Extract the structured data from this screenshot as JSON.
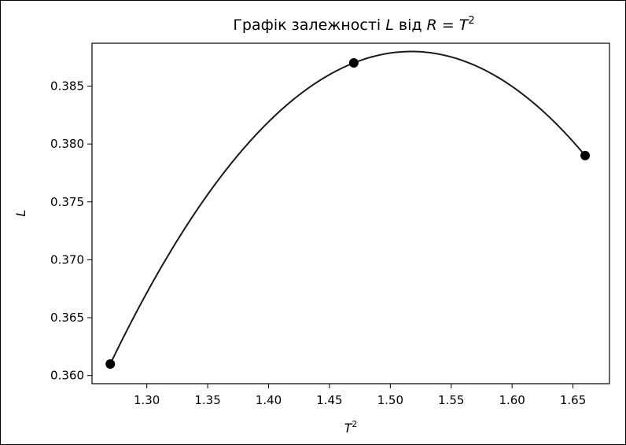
{
  "chart_data": {
    "type": "line",
    "title_prefix": "Графік залежності ",
    "title_var_l": "L",
    "title_mid": " від ",
    "title_var_r": "R",
    "title_eq": " = ",
    "title_var_t": "T",
    "title_exp": "2",
    "xlabel_var": "T",
    "xlabel_exp": "2",
    "ylabel": "L",
    "xlim": [
      1.255,
      1.68
    ],
    "ylim": [
      0.3593,
      0.3887
    ],
    "xticks": [
      "1.30",
      "1.35",
      "1.40",
      "1.45",
      "1.50",
      "1.55",
      "1.60",
      "1.65"
    ],
    "xtick_values": [
      1.3,
      1.35,
      1.4,
      1.45,
      1.5,
      1.55,
      1.6,
      1.65
    ],
    "yticks": [
      "0.360",
      "0.365",
      "0.370",
      "0.375",
      "0.380",
      "0.385"
    ],
    "ytick_values": [
      0.36,
      0.365,
      0.37,
      0.375,
      0.38,
      0.385
    ],
    "points": [
      {
        "x": 1.27,
        "y": 0.361
      },
      {
        "x": 1.47,
        "y": 0.387
      },
      {
        "x": 1.66,
        "y": 0.379
      }
    ],
    "curve": "quadratic fit through points",
    "grid": false,
    "colors": {
      "line": "#1a1a1a",
      "marker": "#000000"
    }
  }
}
